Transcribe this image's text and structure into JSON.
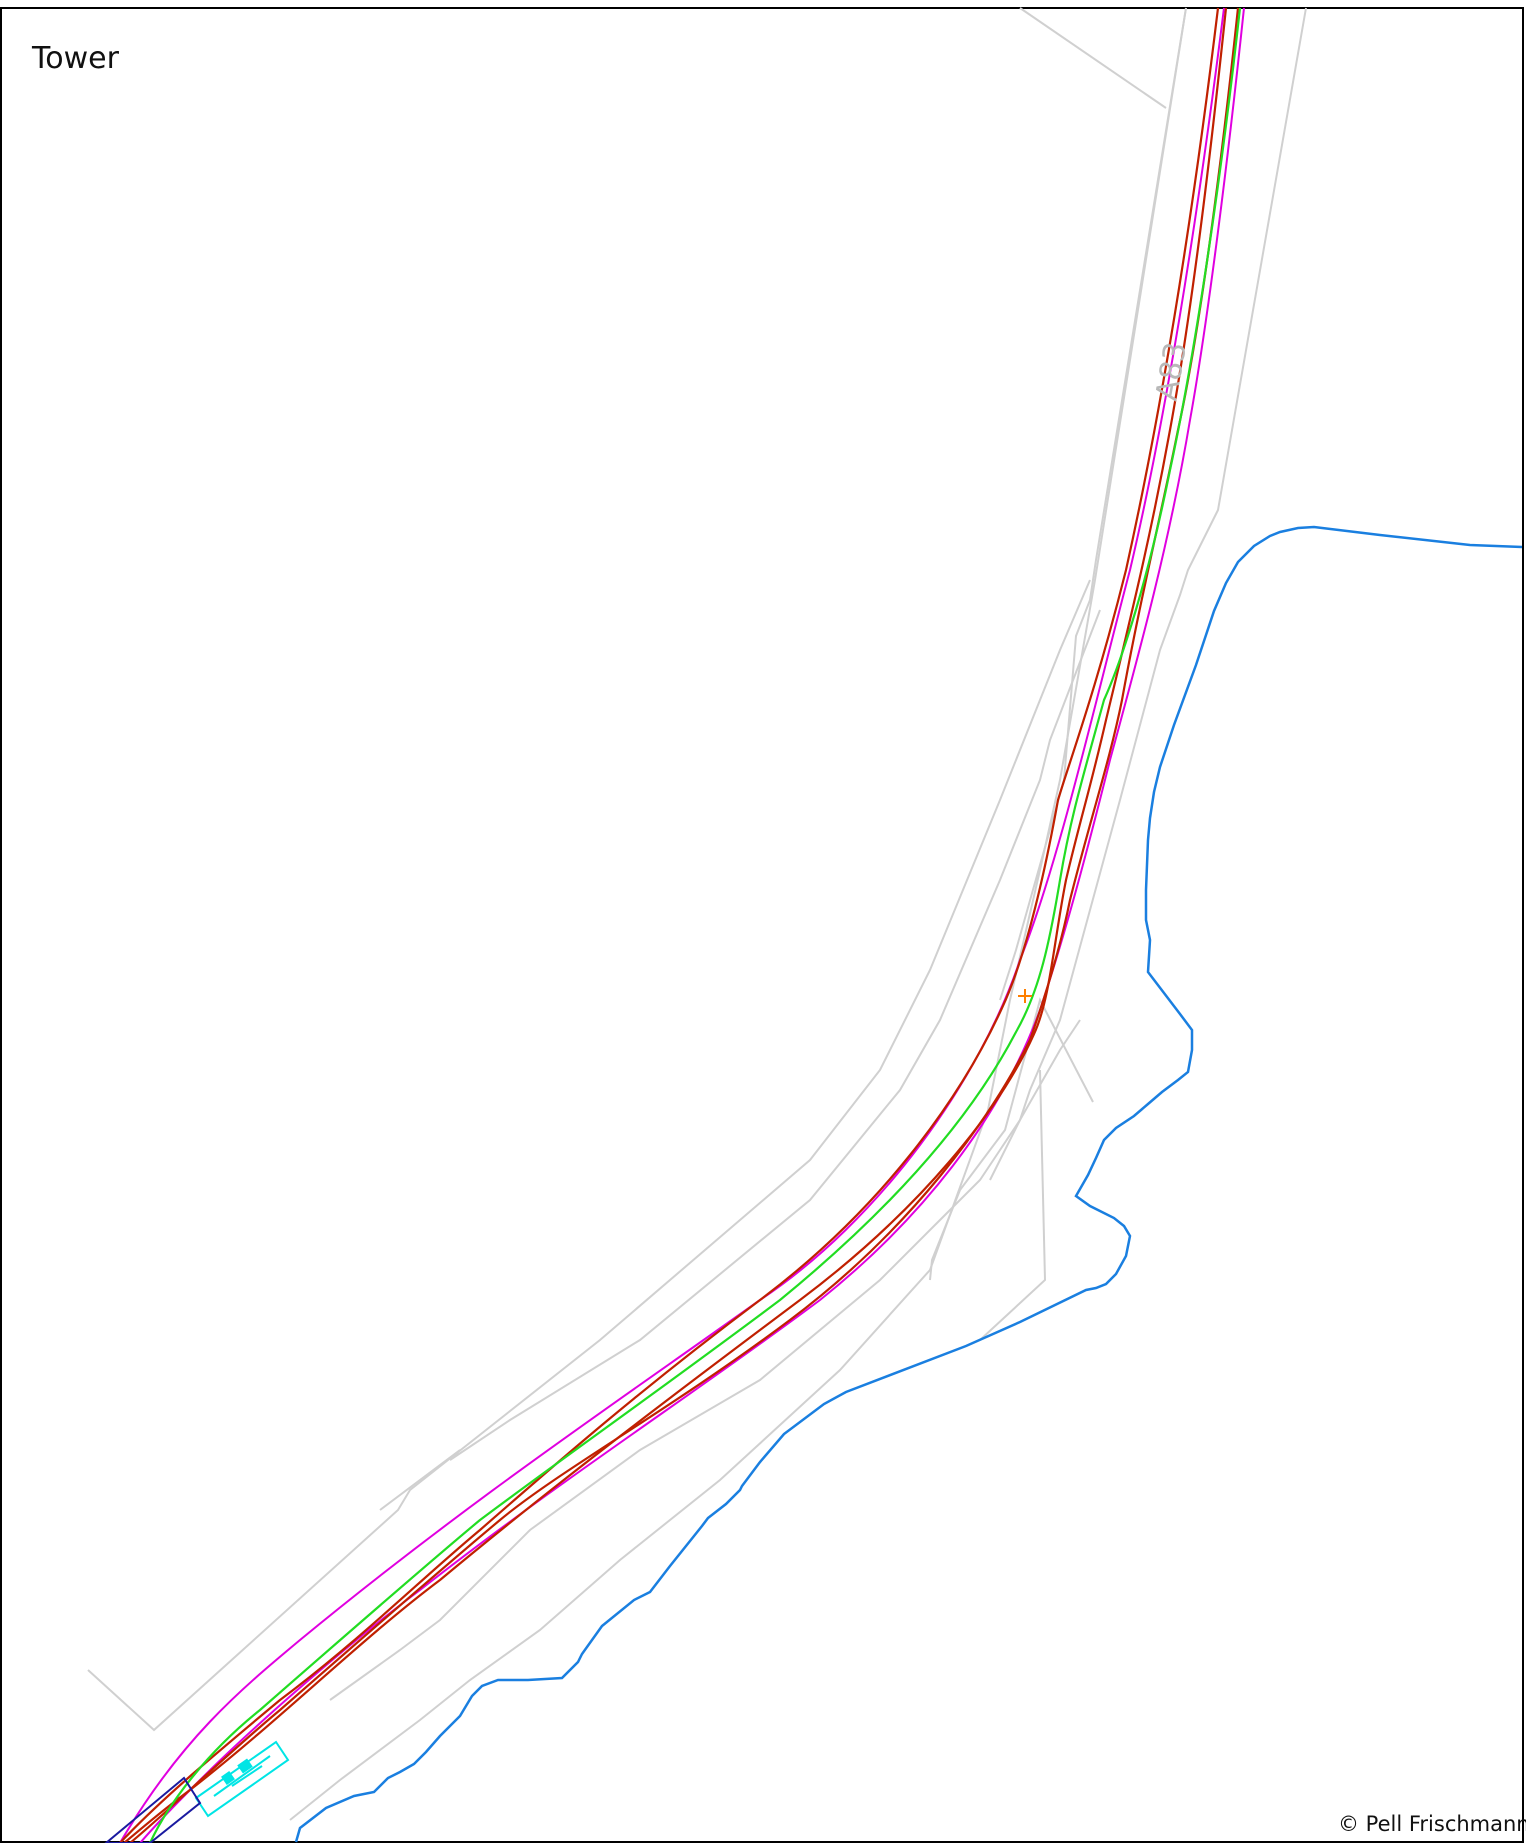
{
  "map": {
    "title": "Tower",
    "road_label": "A83",
    "copyright": "© Pell Frischmann"
  },
  "colors": {
    "background": "#ffffff",
    "border": "#000000",
    "context_lines": "#cfcfcf",
    "boundary": "#e000e0",
    "carriageway_edge": "#c02000",
    "centre_line": "#22dd22",
    "watercourse": "#1a7fe0",
    "structure": "#00e5e5",
    "frame_box": "#1a1aa0",
    "marker": "#ff7f00"
  },
  "icons": {
    "survey_marker": "plus-cross-icon"
  }
}
